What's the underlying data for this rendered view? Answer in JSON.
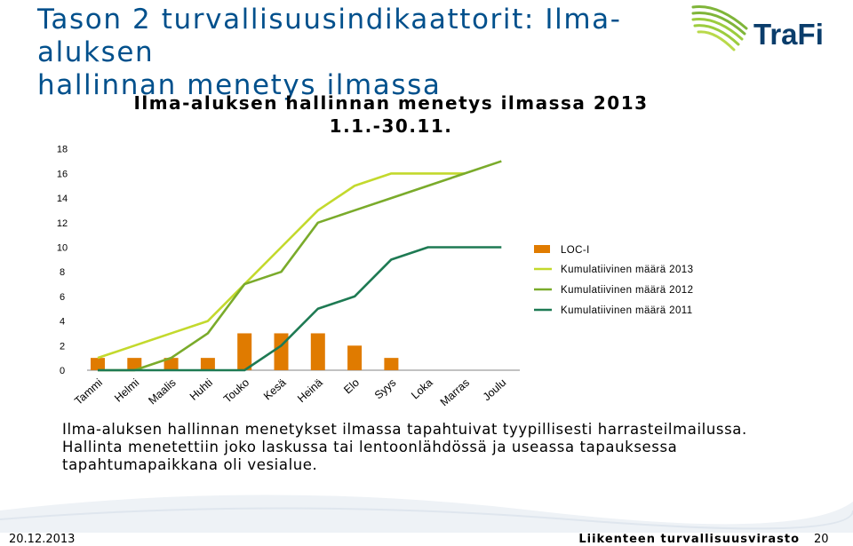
{
  "slide": {
    "title_line1": "Tason 2 turvallisuusindikaattorit: Ilma-aluksen",
    "title_line2": "hallinnan menetys ilmassa",
    "logo_text": "TraFi",
    "caption_lines": [
      "Ilma-aluksen hallinnan menetykset ilmassa tapahtuivat tyypillisesti harrasteilmailussa.",
      "Hallinta menetettiin joko laskussa tai lentoonlähdössä ja useassa tapauksessa",
      "tapahtumapaikkana oli vesialue."
    ],
    "footer_date": "20.12.2013",
    "footer_org": "Liikenteen turvallisuusvirasto",
    "footer_page": "20"
  },
  "chart_data": {
    "type": "bar",
    "title_line1": "Ilma-aluksen hallinnan menetys ilmassa 2013",
    "title_line2": "1.1.-30.11.",
    "categories": [
      "Tammi",
      "Helmi",
      "Maalis",
      "Huhti",
      "Touko",
      "Kesä",
      "Heinä",
      "Elo",
      "Syys",
      "Loka",
      "Marras",
      "Joulu"
    ],
    "ylim": [
      0,
      18
    ],
    "yticks": [
      0,
      2,
      4,
      6,
      8,
      10,
      12,
      14,
      16,
      18
    ],
    "grid": false,
    "legend_position": "right",
    "series": [
      {
        "name": "LOC-I",
        "type": "bar",
        "color": "#e07b00",
        "values": [
          1,
          1,
          1,
          1,
          3,
          3,
          3,
          2,
          1,
          null,
          null,
          null
        ]
      },
      {
        "name": "Kumulatiivinen määrä 2013",
        "type": "line",
        "color": "#c3d92d",
        "values": [
          1,
          2,
          3,
          4,
          7,
          10,
          13,
          15,
          16,
          16,
          16,
          null
        ]
      },
      {
        "name": "Kumulatiivinen määrä 2012",
        "type": "line",
        "color": "#7aab2b",
        "values": [
          0,
          0,
          1,
          3,
          7,
          8,
          12,
          13,
          14,
          15,
          16,
          17
        ]
      },
      {
        "name": "Kumulatiivinen määrä 2011",
        "type": "line",
        "color": "#1e7a53",
        "values": [
          0,
          0,
          0,
          0,
          0,
          2,
          5,
          6,
          9,
          10,
          10,
          10
        ]
      }
    ]
  }
}
